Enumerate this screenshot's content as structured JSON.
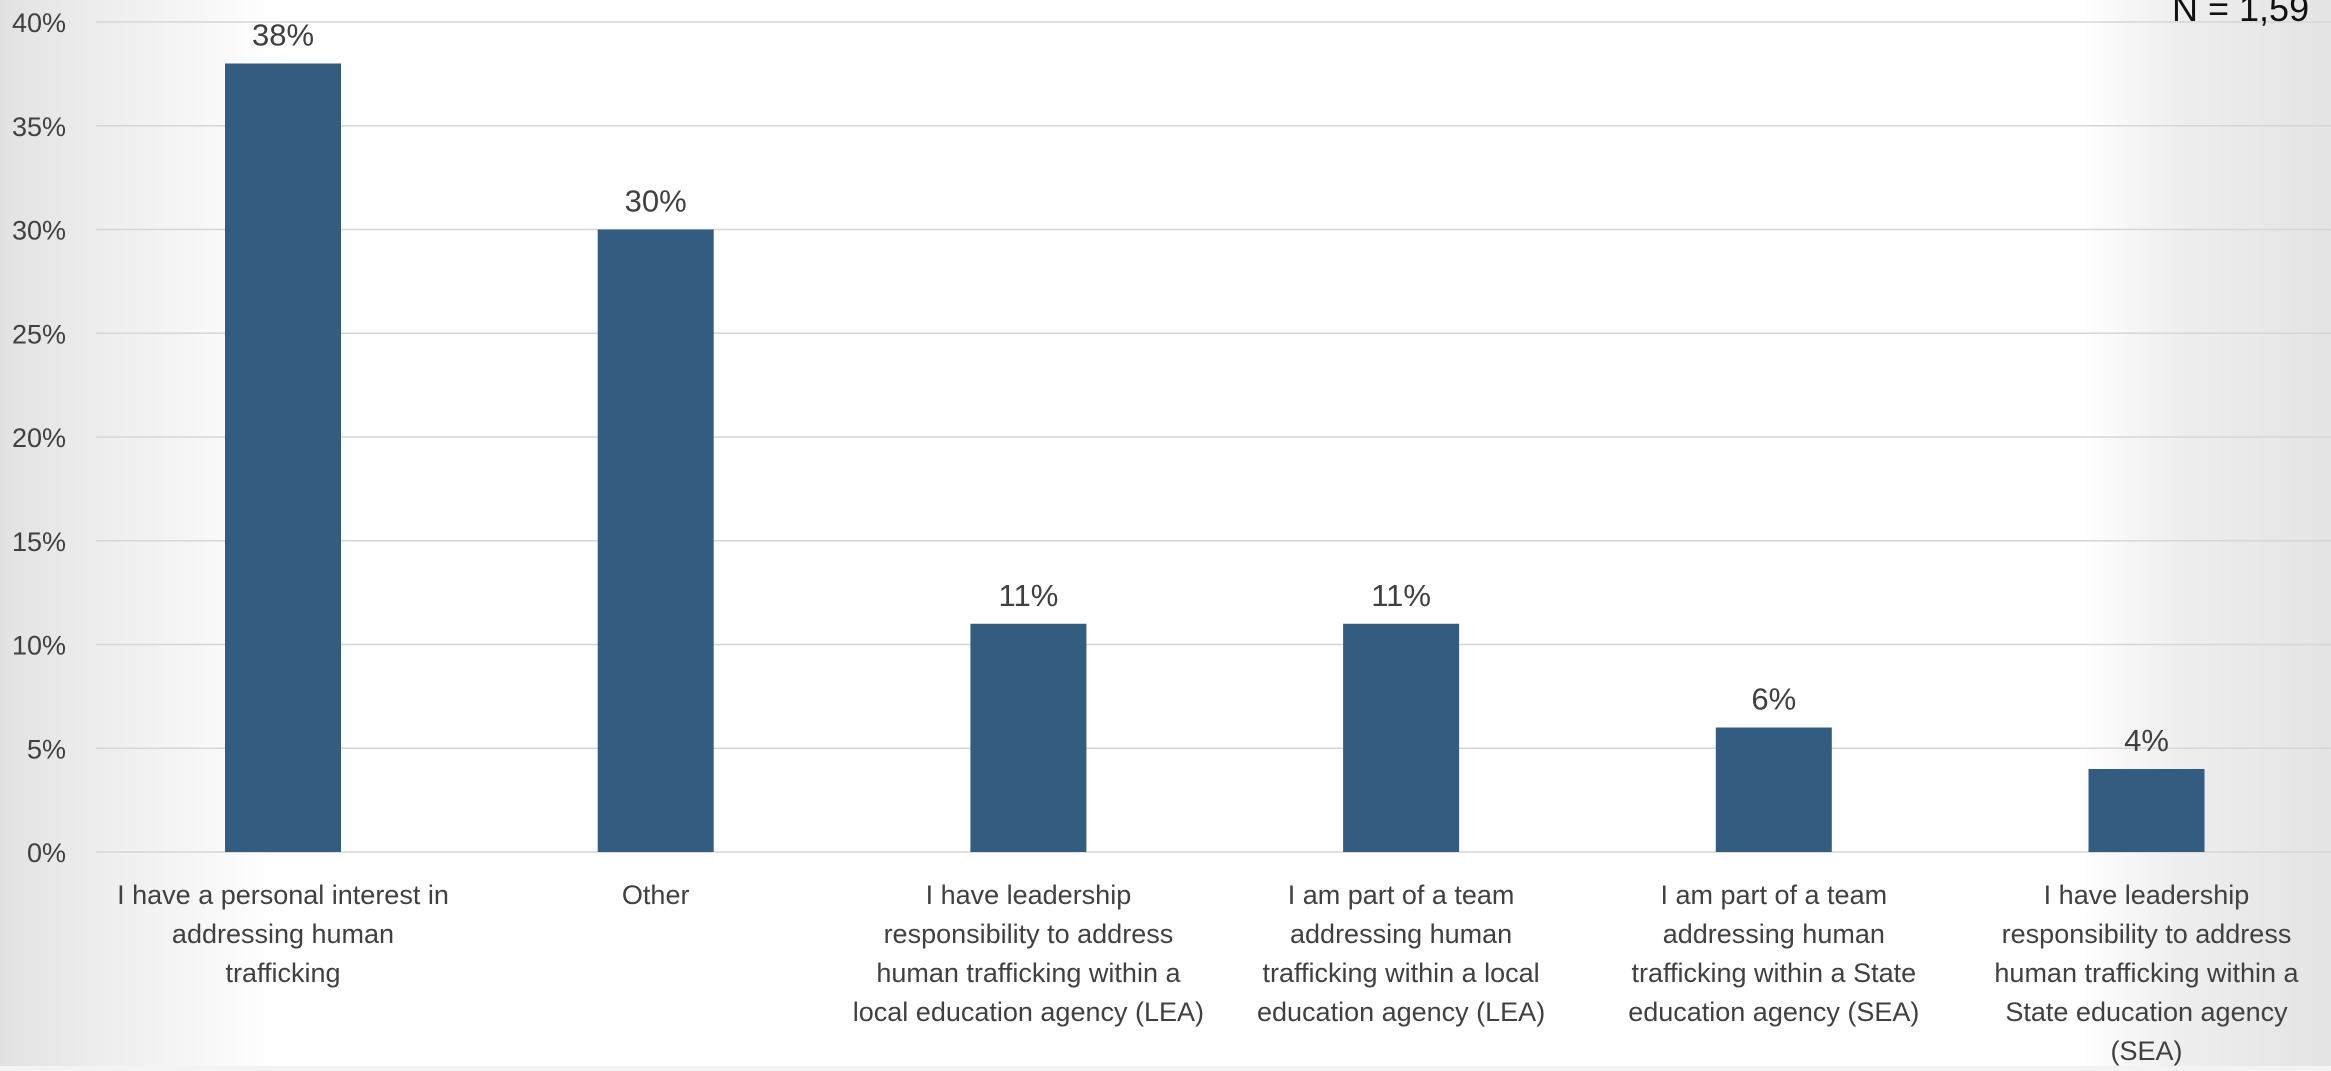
{
  "sample_label": "N = 1,59",
  "chart_data": {
    "type": "bar",
    "categories": [
      "I have a personal interest in addressing human trafficking",
      "Other",
      "I have leadership responsibility to address human trafficking within a local education agency (LEA)",
      "I am part of a team addressing human trafficking within a local education agency (LEA)",
      "I am part of a team addressing human trafficking within a State education agency (SEA)",
      "I have leadership responsibility to address human trafficking within a State education agency (SEA)"
    ],
    "category_lines": [
      [
        "I have a personal interest in",
        "addressing human",
        "trafficking"
      ],
      [
        "Other"
      ],
      [
        "I have leadership",
        "responsibility to address",
        "human trafficking within a",
        "local education agency (LEA)"
      ],
      [
        "I am part of a team",
        "addressing human",
        "trafficking within a local",
        "education agency (LEA)"
      ],
      [
        "I am part of a team",
        "addressing human",
        "trafficking within a State",
        "education agency (SEA)"
      ],
      [
        "I have leadership",
        "responsibility to address",
        "human trafficking within a",
        "State education agency",
        "(SEA)"
      ]
    ],
    "values": [
      38,
      30,
      11,
      11,
      6,
      4
    ],
    "data_labels": [
      "38%",
      "30%",
      "11%",
      "11%",
      "6%",
      "4%"
    ],
    "yticks": [
      0,
      5,
      10,
      15,
      20,
      25,
      30,
      35,
      40
    ],
    "ytick_labels": [
      "0%",
      "5%",
      "10%",
      "15%",
      "20%",
      "25%",
      "30%",
      "35%",
      "40%"
    ],
    "ylim": [
      0,
      40
    ],
    "unit": "%",
    "grid": true,
    "legend": "none",
    "title": "",
    "xlabel": "",
    "ylabel": "",
    "bar_color": "#325d80",
    "grid_color": "#d6d6d6",
    "text_color": "#404040"
  }
}
